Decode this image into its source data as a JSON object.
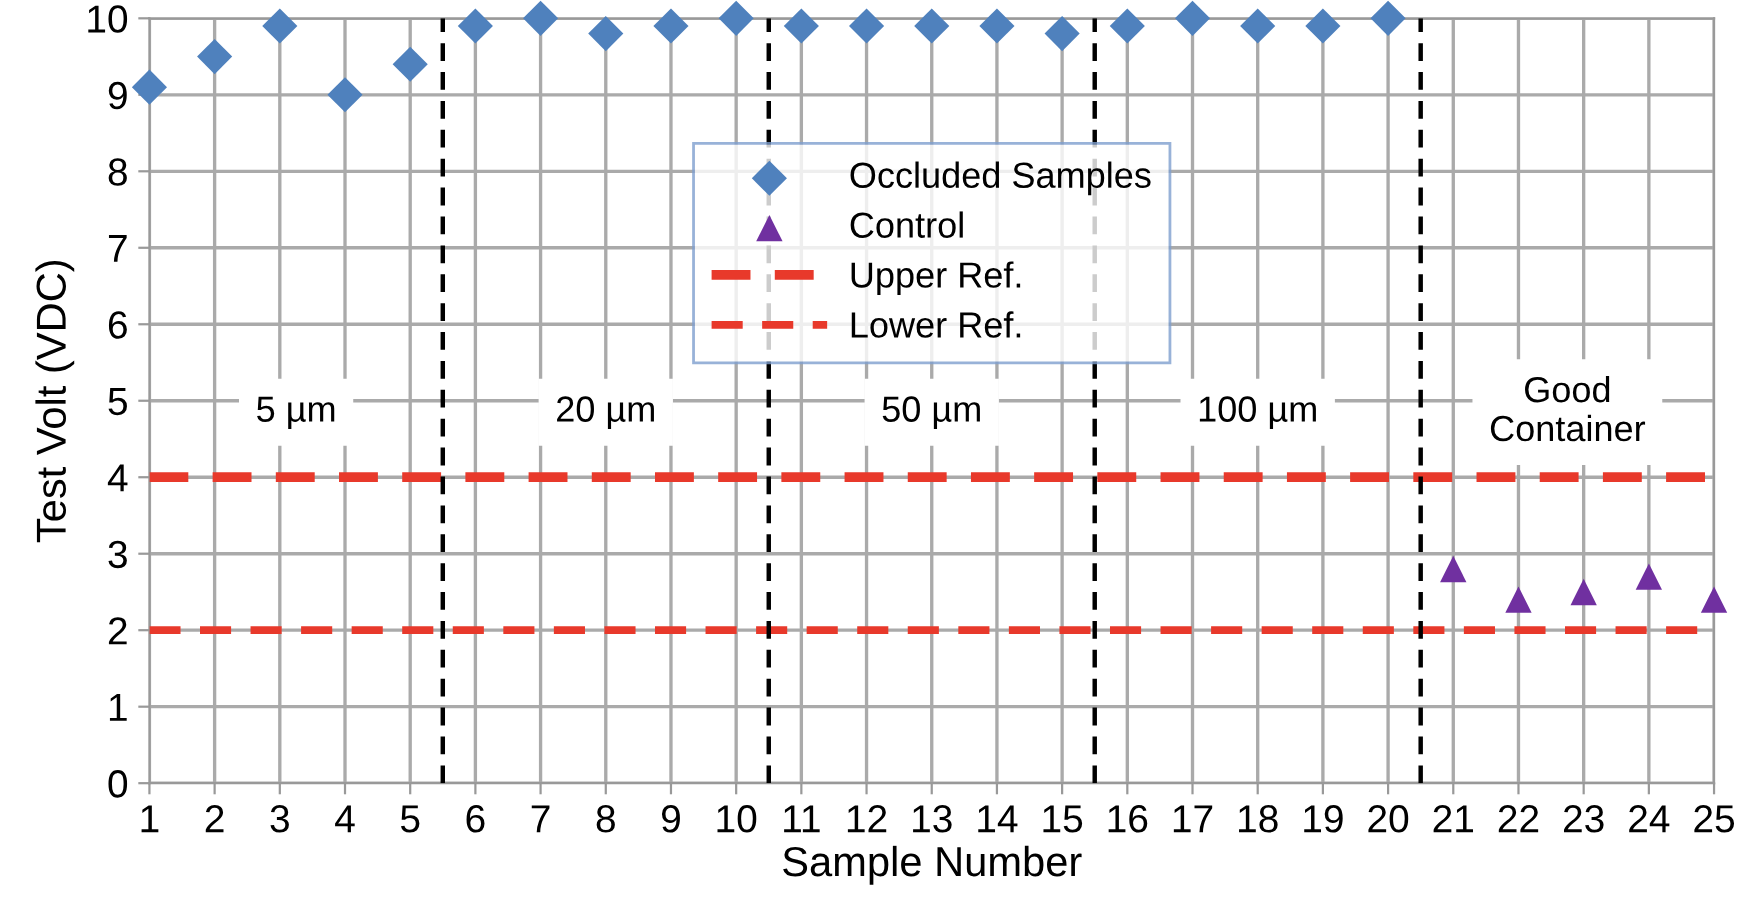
{
  "chart_data": {
    "type": "scatter",
    "xlabel": "Sample Number",
    "ylabel": "Test Volt (VDC)",
    "xlim": [
      1,
      25
    ],
    "xticks": [
      1,
      2,
      3,
      4,
      5,
      6,
      7,
      8,
      9,
      10,
      11,
      12,
      13,
      14,
      15,
      16,
      17,
      18,
      19,
      20,
      21,
      22,
      23,
      24,
      25
    ],
    "ylim": [
      0,
      10
    ],
    "yticks": [
      0,
      1,
      2,
      3,
      4,
      5,
      6,
      7,
      8,
      9,
      10
    ],
    "grid": true,
    "legend": "top",
    "series": [
      {
        "name": "Occluded Samples",
        "marker": "diamond",
        "color": "#4f81bd",
        "x": [
          1,
          2,
          3,
          4,
          5,
          6,
          7,
          8,
          9,
          10,
          11,
          12,
          13,
          14,
          15,
          16,
          17,
          18,
          19,
          20
        ],
        "values": [
          9.1,
          9.5,
          9.9,
          9.0,
          9.4,
          9.9,
          10.0,
          9.8,
          9.9,
          10.0,
          9.9,
          9.9,
          9.9,
          9.9,
          9.8,
          9.9,
          10.0,
          9.9,
          9.9,
          10.0
        ]
      },
      {
        "name": "Control",
        "marker": "triangle",
        "color": "#7030a0",
        "x": [
          21,
          22,
          23,
          24,
          25
        ],
        "values": [
          2.8,
          2.4,
          2.5,
          2.7,
          2.4
        ]
      },
      {
        "name": "Upper Ref.",
        "type": "line",
        "marker": "none",
        "line_style": "dashed",
        "color": "#e8392b",
        "x": [
          1,
          25
        ],
        "values": [
          4,
          4
        ]
      },
      {
        "name": "Lower Ref.",
        "type": "line",
        "marker": "none",
        "line_style": "dashed",
        "color": "#e8392b",
        "x": [
          1,
          25
        ],
        "values": [
          2,
          2
        ]
      }
    ],
    "ref_lines": [
      {
        "axis": "x",
        "value": 5.5,
        "color": "#000000",
        "line_style": "dashed"
      },
      {
        "axis": "x",
        "value": 10.5,
        "color": "#000000",
        "line_style": "dashed"
      },
      {
        "axis": "x",
        "value": 15.5,
        "color": "#000000",
        "line_style": "dashed"
      },
      {
        "axis": "x",
        "value": 20.5,
        "color": "#000000",
        "line_style": "dashed"
      }
    ],
    "annotations": [
      "5 µm",
      "20 µm",
      "50 µm",
      "100 µm",
      "Good\nContainer"
    ]
  }
}
